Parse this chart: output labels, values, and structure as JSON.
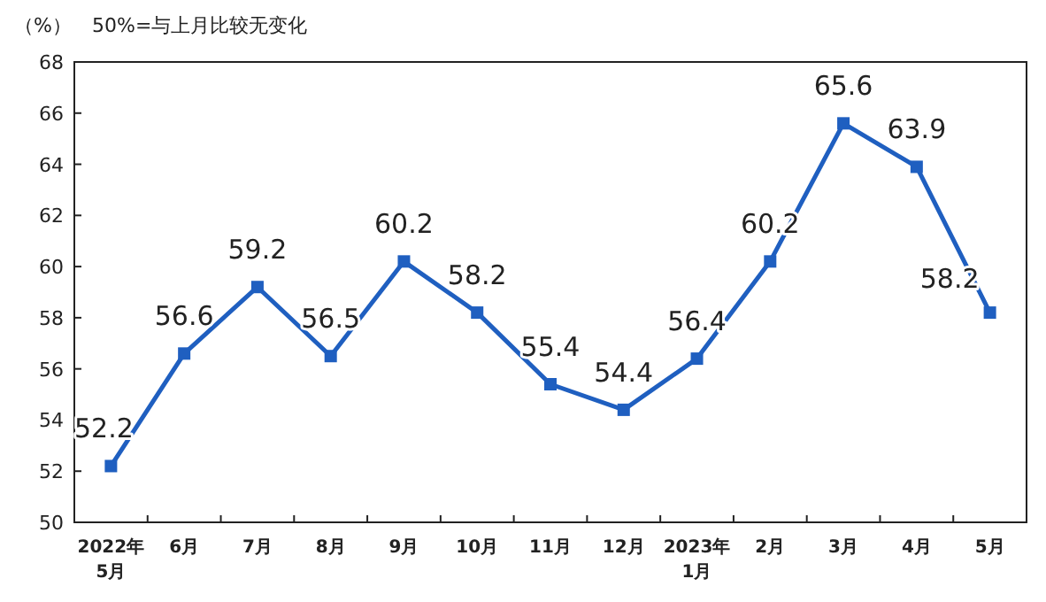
{
  "chart_data": {
    "type": "line",
    "ylabel": "（%）",
    "title": "50%=与上月比较无变化",
    "categories": [
      "2022年\n5月",
      "6月",
      "7月",
      "8月",
      "9月",
      "10月",
      "11月",
      "12月",
      "2023年\n1月",
      "2月",
      "3月",
      "4月",
      "5月"
    ],
    "values": [
      52.2,
      56.6,
      59.2,
      56.5,
      60.2,
      58.2,
      55.4,
      54.4,
      56.4,
      60.2,
      65.6,
      63.9,
      58.2
    ],
    "color": "#1f5fc0",
    "marker": "square",
    "data_labels": true,
    "grid": false,
    "ylim": [
      50,
      68
    ],
    "yticks": [
      50,
      52,
      54,
      56,
      58,
      60,
      62,
      64,
      66,
      68
    ]
  }
}
